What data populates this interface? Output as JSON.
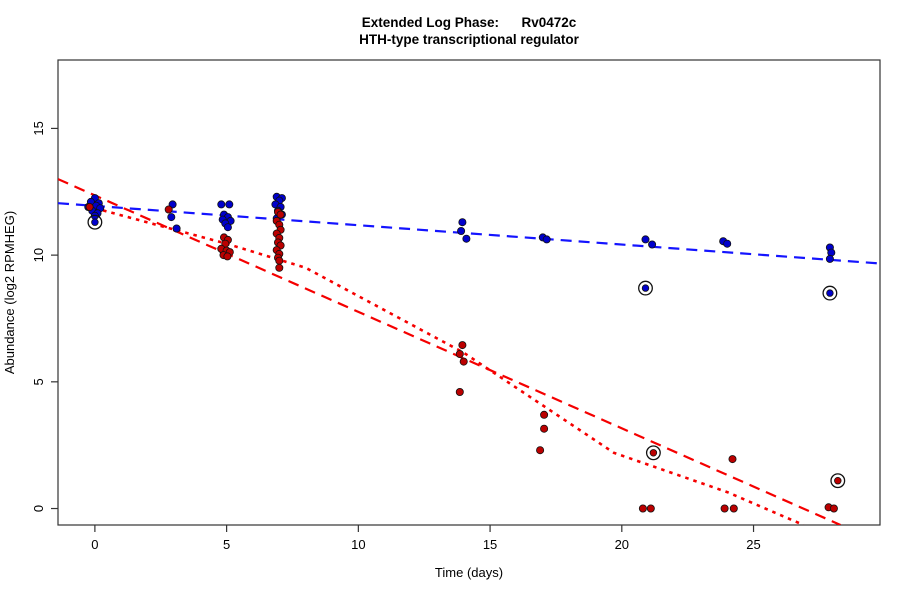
{
  "title": {
    "line1": "Extended Log Phase:      Rv0472c",
    "line2": "HTH-type transcriptional regulator"
  },
  "chart_data": {
    "type": "scatter",
    "title": "Extended Log Phase: Rv0472c",
    "subtitle": "HTH-type transcriptional regulator",
    "xlabel": "Time  (days)",
    "ylabel": "Abundance  (log2 RPMHEG)",
    "xlim": [
      -1.4,
      29.8
    ],
    "ylim": [
      -0.65,
      17.7
    ],
    "xticks": [
      0,
      5,
      10,
      15,
      20,
      25
    ],
    "yticks": [
      0,
      5,
      10,
      15
    ],
    "grid": false,
    "legend": "none",
    "colors": {
      "blue_point": "#0000CC",
      "red_point": "#BB0000",
      "blue_line": "#1414FF",
      "red_line": "#F50000",
      "axis": "#333333",
      "ring": "#111111"
    },
    "series": [
      {
        "name": "blue",
        "color": "#0000CC",
        "points": [
          [
            0.0,
            12.25
          ],
          [
            -0.15,
            12.1
          ],
          [
            0.15,
            12.05
          ],
          [
            0.05,
            11.95
          ],
          [
            -0.25,
            11.9
          ],
          [
            0.2,
            11.85
          ],
          [
            -0.1,
            11.75
          ],
          [
            0.1,
            11.65
          ],
          [
            0.0,
            11.55
          ],
          [
            2.95,
            12.0
          ],
          [
            2.9,
            11.5
          ],
          [
            3.1,
            11.05
          ],
          [
            4.8,
            12.0
          ],
          [
            5.1,
            12.0
          ],
          [
            4.9,
            11.6
          ],
          [
            5.05,
            11.5
          ],
          [
            4.85,
            11.4
          ],
          [
            5.15,
            11.35
          ],
          [
            4.95,
            11.25
          ],
          [
            5.05,
            11.1
          ],
          [
            4.85,
            10.2
          ],
          [
            6.9,
            12.3
          ],
          [
            7.1,
            12.25
          ],
          [
            7.0,
            12.15
          ],
          [
            6.85,
            12.0
          ],
          [
            7.05,
            11.9
          ],
          [
            6.95,
            11.75
          ],
          [
            7.1,
            11.6
          ],
          [
            6.9,
            11.45
          ],
          [
            13.95,
            11.3
          ],
          [
            13.9,
            10.95
          ],
          [
            14.1,
            10.65
          ],
          [
            17.0,
            10.7
          ],
          [
            17.15,
            10.62
          ],
          [
            20.9,
            10.62
          ],
          [
            21.15,
            10.42
          ],
          [
            23.85,
            10.55
          ],
          [
            24.0,
            10.45
          ],
          [
            27.9,
            10.3
          ],
          [
            27.95,
            10.1
          ],
          [
            27.9,
            9.85
          ]
        ],
        "circled_points": [
          [
            0.0,
            11.3
          ],
          [
            20.9,
            8.7
          ],
          [
            27.9,
            8.5
          ]
        ]
      },
      {
        "name": "red",
        "color": "#BB0000",
        "points": [
          [
            -0.2,
            11.9
          ],
          [
            2.8,
            11.8
          ],
          [
            4.9,
            10.7
          ],
          [
            5.05,
            10.6
          ],
          [
            4.95,
            10.45
          ],
          [
            4.8,
            10.25
          ],
          [
            5.0,
            10.18
          ],
          [
            5.12,
            10.12
          ],
          [
            4.88,
            10.0
          ],
          [
            5.03,
            9.95
          ],
          [
            6.95,
            11.7
          ],
          [
            7.05,
            11.6
          ],
          [
            6.9,
            11.35
          ],
          [
            7.0,
            11.2
          ],
          [
            7.05,
            11.0
          ],
          [
            6.9,
            10.85
          ],
          [
            7.0,
            10.68
          ],
          [
            6.95,
            10.5
          ],
          [
            7.05,
            10.38
          ],
          [
            6.9,
            10.2
          ],
          [
            7.0,
            10.05
          ],
          [
            6.95,
            9.9
          ],
          [
            7.0,
            9.78
          ],
          [
            7.0,
            9.5
          ],
          [
            13.95,
            6.45
          ],
          [
            13.85,
            6.1
          ],
          [
            14.0,
            5.8
          ],
          [
            13.85,
            4.6
          ],
          [
            17.05,
            3.7
          ],
          [
            17.05,
            3.15
          ],
          [
            16.9,
            2.3
          ],
          [
            20.8,
            0.0
          ],
          [
            21.1,
            0.0
          ],
          [
            24.2,
            1.95
          ],
          [
            23.9,
            0.0
          ],
          [
            24.25,
            0.0
          ],
          [
            27.85,
            0.05
          ],
          [
            28.05,
            0.0
          ]
        ],
        "circled_points": [
          [
            21.2,
            2.2
          ],
          [
            28.2,
            1.1
          ]
        ]
      }
    ],
    "fit_lines": [
      {
        "name": "blue-dashed-fit",
        "color": "#1414FF",
        "style": "dashed",
        "width": 2.2,
        "points": [
          [
            -1.4,
            12.05
          ],
          [
            29.8,
            9.67
          ]
        ]
      },
      {
        "name": "red-dashed-fit",
        "color": "#F50000",
        "style": "dashed",
        "width": 2.2,
        "points": [
          [
            -1.4,
            13.0
          ],
          [
            28.3,
            -0.65
          ]
        ]
      },
      {
        "name": "red-dotted-fit",
        "color": "#F50000",
        "style": "dotted",
        "width": 2.6,
        "points": [
          [
            0.0,
            11.85
          ],
          [
            5.0,
            10.45
          ],
          [
            8.0,
            9.5
          ],
          [
            14.0,
            6.15
          ],
          [
            19.7,
            2.2
          ],
          [
            24.0,
            0.65
          ],
          [
            26.9,
            -0.65
          ]
        ]
      }
    ]
  }
}
